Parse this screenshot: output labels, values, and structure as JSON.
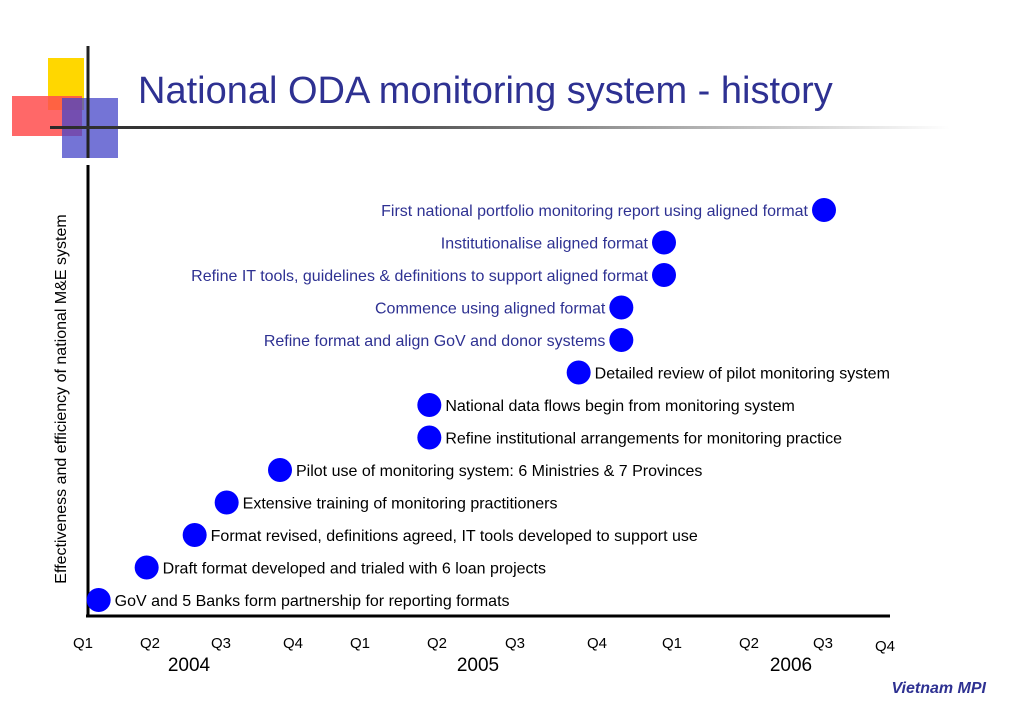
{
  "slide": {
    "title": "National ODA monitoring system - history",
    "footer": "Vietnam MPI"
  },
  "colors": {
    "title": "#2e3192",
    "milestone_marker": "#0000ff",
    "label_blue": "#2e3192",
    "label_black": "#000000",
    "logo_yellow": "#ffd700",
    "logo_red": "#ff3333",
    "logo_blue": "#3333cc"
  },
  "chart_data": {
    "type": "scatter",
    "title": "",
    "xlabel": "",
    "ylabel": "Effectiveness and efficiency of national M&E system",
    "grid": false,
    "x_ticks": [
      "Q1",
      "Q2",
      "Q3",
      "Q4",
      "Q1",
      "Q2",
      "Q3",
      "Q4",
      "Q1",
      "Q2",
      "Q3",
      "Q4"
    ],
    "years": [
      "2004",
      "2005",
      "2006"
    ],
    "xlim": [
      2004.0,
      2007.0
    ],
    "milestones": [
      {
        "x": 2004.04,
        "level": 1,
        "label": "GoV and 5 Banks form partnership for reporting formats",
        "label_side": "right",
        "color": "black"
      },
      {
        "x": 2004.22,
        "level": 2,
        "label": "Draft format developed and trialed with 6 loan projects",
        "label_side": "right",
        "color": "black"
      },
      {
        "x": 2004.4,
        "level": 3,
        "label": "Format revised, definitions agreed, IT tools developed to support use",
        "label_side": "right",
        "color": "black"
      },
      {
        "x": 2004.52,
        "level": 4,
        "label": "Extensive training of monitoring practitioners",
        "label_side": "right",
        "color": "black"
      },
      {
        "x": 2004.72,
        "level": 5,
        "label": "Pilot use of monitoring system: 6 Ministries & 7 Provinces",
        "label_side": "right",
        "color": "black"
      },
      {
        "x": 2005.28,
        "level": 6,
        "label": "Refine institutional arrangements for monitoring practice",
        "label_side": "right",
        "color": "black"
      },
      {
        "x": 2005.28,
        "level": 7,
        "label": "National data flows begin from monitoring system",
        "label_side": "right",
        "color": "black"
      },
      {
        "x": 2005.84,
        "level": 8,
        "label": "Detailed review of pilot monitoring system",
        "label_side": "right",
        "color": "black"
      },
      {
        "x": 2006.0,
        "level": 9,
        "label": "Refine format and align GoV and donor systems",
        "label_side": "left",
        "color": "blue"
      },
      {
        "x": 2006.0,
        "level": 10,
        "label": "Commence using aligned format",
        "label_side": "left",
        "color": "blue"
      },
      {
        "x": 2006.16,
        "level": 11,
        "label": "Refine IT tools, guidelines & definitions to support aligned format",
        "label_side": "left",
        "color": "blue"
      },
      {
        "x": 2006.16,
        "level": 12,
        "label": "Institutionalise aligned format",
        "label_side": "left",
        "color": "blue"
      },
      {
        "x": 2006.76,
        "level": 13,
        "label": "First national portfolio monitoring report using aligned format",
        "label_side": "left",
        "color": "blue"
      }
    ]
  }
}
